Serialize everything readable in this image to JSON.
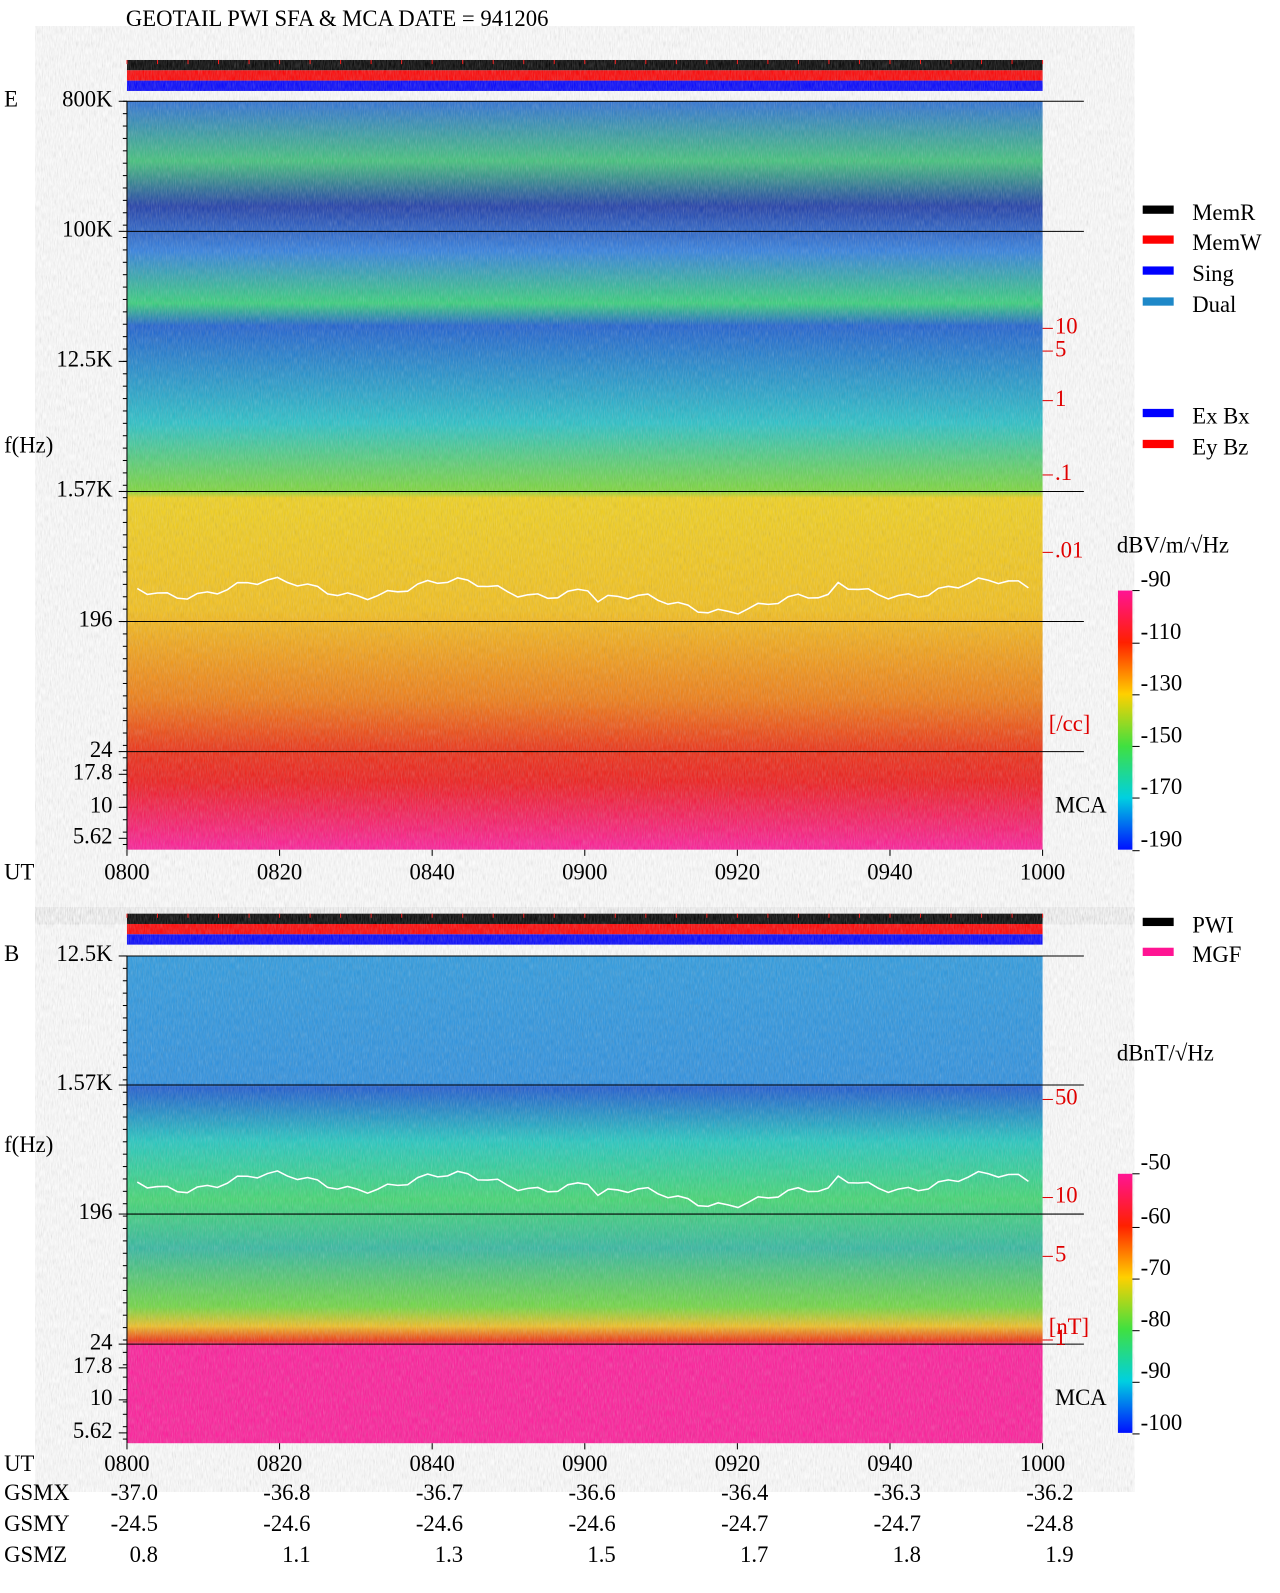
{
  "header": {
    "title": "GEOTAIL  PWI SFA & MCA   DATE = 941206"
  },
  "panels": [
    {
      "label": "E",
      "y_label": "f(Hz)",
      "time_label": "UT",
      "freq_ticks": [
        "800K",
        "100K",
        "12.5K",
        "1.57K",
        "196",
        "24",
        "17.8",
        "10",
        "5.62"
      ],
      "time_ticks": [
        "0800",
        "0820",
        "0840",
        "0900",
        "0920",
        "0940",
        "1000"
      ],
      "density_ticks": [
        "10",
        "5",
        "1",
        ".1",
        ".01"
      ],
      "density_unit": "[/cc]",
      "mca_label": "MCA",
      "colorbar": {
        "unit": "dBV/m/√Hz",
        "ticks": [
          "-90",
          "-110",
          "-130",
          "-150",
          "-170",
          "-190"
        ]
      },
      "legend": [
        {
          "name": "MemR",
          "color": "#000000"
        },
        {
          "name": "MemW",
          "color": "#ff0000"
        },
        {
          "name": "Sing",
          "color": "#0000ff"
        },
        {
          "name": "Dual",
          "color": "#1e88c8"
        },
        {
          "name": "Ex Bx",
          "color": "#0000ff"
        },
        {
          "name": "Ey Bz",
          "color": "#ff0000"
        }
      ]
    },
    {
      "label": "B",
      "y_label": "f(Hz)",
      "time_label": "UT",
      "freq_ticks": [
        "12.5K",
        "1.57K",
        "196",
        "24",
        "17.8",
        "10",
        "5.62"
      ],
      "time_ticks": [
        "0800",
        "0820",
        "0840",
        "0900",
        "0920",
        "0940",
        "1000"
      ],
      "density_ticks": [
        "50",
        "10",
        "5",
        "1"
      ],
      "density_unit": "[nT]",
      "mca_label": "MCA",
      "colorbar": {
        "unit": "dBnT/√Hz",
        "ticks": [
          "-50",
          "-60",
          "-70",
          "-80",
          "-90",
          "-100"
        ]
      },
      "legend": [
        {
          "name": "PWI",
          "color": "#000000"
        },
        {
          "name": "MGF",
          "color": "#ff1493"
        }
      ]
    }
  ],
  "orbit": [
    {
      "name": "GSMX",
      "values": [
        "-37.0",
        "-36.8",
        "-36.7",
        "-36.6",
        "-36.4",
        "-36.3",
        "-36.2"
      ]
    },
    {
      "name": "GSMY",
      "values": [
        "-24.5",
        "-24.6",
        "-24.6",
        "-24.6",
        "-24.7",
        "-24.7",
        "-24.8"
      ]
    },
    {
      "name": "GSMZ",
      "values": [
        "0.8",
        "1.1",
        "1.3",
        "1.5",
        "1.7",
        "1.8",
        "1.9"
      ]
    }
  ]
}
